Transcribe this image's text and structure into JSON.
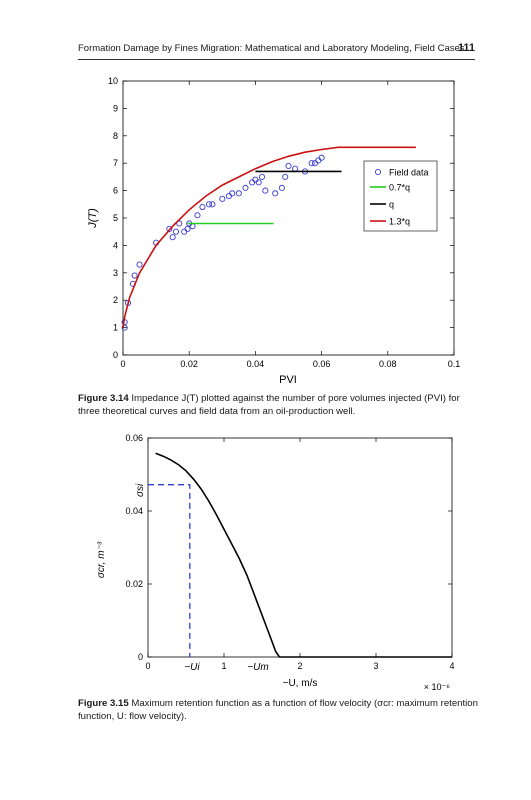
{
  "header": {
    "running_title": "Formation Damage by Fines Migration: Mathematical and Laboratory Modeling, Field Cases",
    "page_number": "111"
  },
  "figure1": {
    "caption_label": "Figure 3.14",
    "caption_text": "Impedance J(T) plotted against the number of pore volumes injected (PVI) for three theoretical curves and field data from an oil-production well.",
    "chart_data": {
      "type": "line",
      "xlabel": "PVI",
      "ylabel": "J(T)",
      "xlim": [
        0,
        0.1
      ],
      "ylim": [
        0,
        10
      ],
      "xticks": [
        "0",
        "0.02",
        "0.04",
        "0.06",
        "0.08",
        "0.1"
      ],
      "yticks": [
        "0",
        "1",
        "2",
        "3",
        "4",
        "5",
        "6",
        "7",
        "8",
        "9",
        "10"
      ],
      "legend_position": "right",
      "series": [
        {
          "name": "Field data",
          "kind": "scatter",
          "color": "#3b3bd1",
          "x": [
            0.0005,
            0.0005,
            0.0015,
            0.003,
            0.0035,
            0.005,
            0.01,
            0.014,
            0.015,
            0.016,
            0.017,
            0.0185,
            0.0195,
            0.02,
            0.021,
            0.0225,
            0.024,
            0.026,
            0.027,
            0.03,
            0.032,
            0.033,
            0.035,
            0.037,
            0.039,
            0.04,
            0.041,
            0.042,
            0.043,
            0.046,
            0.048,
            0.049,
            0.05,
            0.052,
            0.055,
            0.057,
            0.058,
            0.059,
            0.06
          ],
          "y": [
            1.0,
            1.2,
            1.9,
            2.6,
            2.9,
            3.3,
            4.1,
            4.6,
            4.3,
            4.5,
            4.8,
            4.5,
            4.6,
            4.8,
            4.7,
            5.1,
            5.4,
            5.5,
            5.5,
            5.7,
            5.8,
            5.9,
            5.9,
            6.1,
            6.3,
            6.4,
            6.3,
            6.5,
            6.0,
            5.9,
            6.1,
            6.5,
            6.9,
            6.8,
            6.7,
            7.0,
            7.0,
            7.1,
            7.2
          ]
        },
        {
          "name": "0.7*q",
          "kind": "line",
          "color": "#22cc22",
          "x": [
            0.0195,
            0.0455
          ],
          "y": [
            4.8,
            4.8
          ]
        },
        {
          "name": "q",
          "kind": "line",
          "color": "#000000",
          "x": [
            0.04,
            0.066
          ],
          "y": [
            6.7,
            6.7
          ]
        },
        {
          "name": "1.3*q",
          "kind": "line",
          "color": "#cc1111",
          "x": [
            0.0,
            0.0005,
            0.002,
            0.005,
            0.01,
            0.015,
            0.02,
            0.025,
            0.03,
            0.035,
            0.04,
            0.045,
            0.05,
            0.055,
            0.06,
            0.065,
            0.0885
          ],
          "y": [
            1.0,
            1.4,
            2.1,
            3.0,
            4.0,
            4.7,
            5.3,
            5.8,
            6.2,
            6.5,
            6.8,
            7.05,
            7.25,
            7.4,
            7.5,
            7.58,
            7.58
          ]
        }
      ]
    }
  },
  "figure2": {
    "caption_label": "Figure 3.15",
    "caption_text": "Maximum retention function as a function of flow velocity (σcr: maximum retention function, U: flow velocity).",
    "chart_data": {
      "type": "line",
      "xlabel": "−U, m/s",
      "ylabel": "σcr, m⁻³",
      "x_multiplier": "× 10⁻⁶",
      "xlim": [
        0,
        4
      ],
      "ylim": [
        0,
        0.06
      ],
      "xticks": [
        "0",
        "1",
        "2",
        "3",
        "4"
      ],
      "yticks": [
        "0",
        "0.02",
        "0.04",
        "0.06"
      ],
      "annotations": {
        "x_marker_1": "−Ui",
        "x_marker_2": "−Um",
        "y_marker": "σsi"
      },
      "series": [
        {
          "name": "",
          "kind": "line",
          "color": "#000000",
          "x": [
            0.1,
            0.2,
            0.3,
            0.4,
            0.5,
            0.6,
            0.7,
            0.8,
            0.9,
            1.0,
            1.1,
            1.2,
            1.3,
            1.4,
            1.5,
            1.6,
            1.68,
            1.73,
            2.0,
            4.0
          ],
          "y": [
            0.0558,
            0.055,
            0.054,
            0.0527,
            0.051,
            0.0487,
            0.046,
            0.0427,
            0.039,
            0.035,
            0.031,
            0.027,
            0.0225,
            0.017,
            0.0115,
            0.006,
            0.0015,
            0.0,
            0.0,
            0.0
          ]
        },
        {
          "name": "",
          "kind": "dashed",
          "color": "#2e3fd6",
          "x": [
            0.0,
            0.55,
            0.55
          ],
          "y": [
            0.0472,
            0.0472,
            0.0
          ]
        }
      ]
    }
  }
}
